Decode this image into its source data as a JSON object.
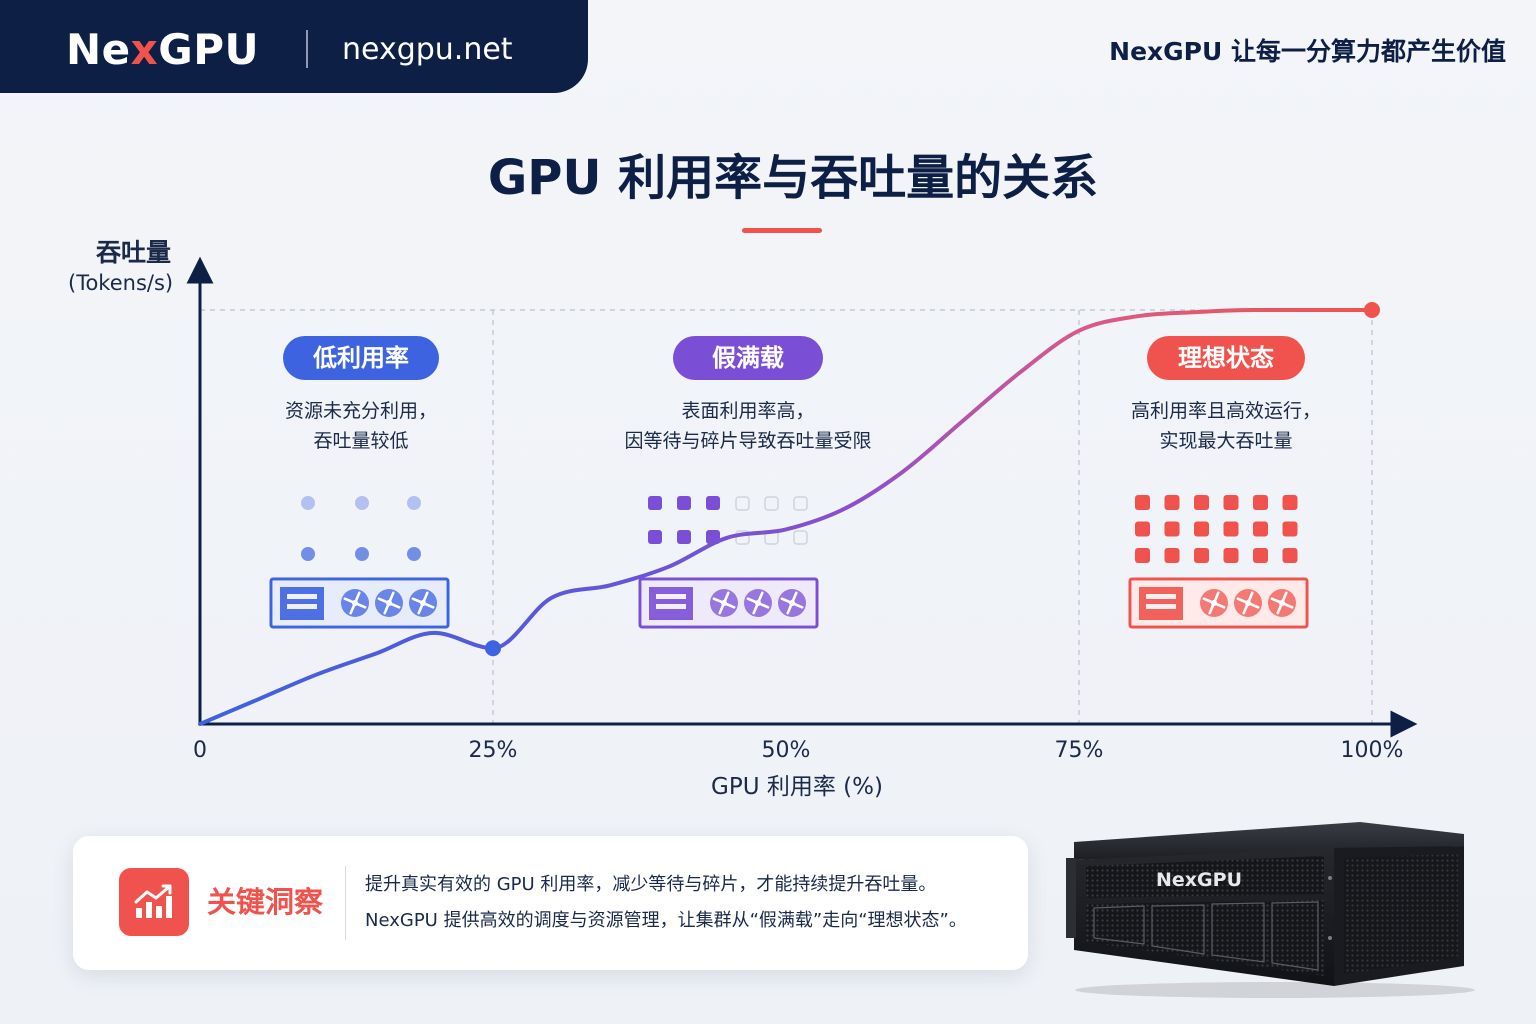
{
  "header": {
    "brand_prefix": "Ne",
    "brand_x": "x",
    "brand_suffix": "GPU",
    "url": "nexgpu.net",
    "slogan": "NexGPU 让每一分算力都产生价值"
  },
  "colors": {
    "navy": "#0d1f45",
    "accent_red": "#f0534d",
    "low_blue": "#3d63e0",
    "fake_purple": "#7a4fd6",
    "ideal_red": "#f0534d"
  },
  "chart_data": {
    "type": "line",
    "title": "GPU 利用率与吞吐量的关系",
    "xlabel": "GPU 利用率 (%)",
    "ylabel": "吞吐量",
    "yunit": "(Tokens/s)",
    "x_ticks": [
      "0",
      "25%",
      "50%",
      "75%",
      "100%"
    ],
    "xlim": [
      0,
      100
    ],
    "ylim": [
      0,
      100
    ],
    "grid": false,
    "x": [
      0,
      5,
      10,
      15,
      20,
      25,
      30,
      35,
      40,
      45,
      50,
      55,
      60,
      65,
      70,
      75,
      80,
      85,
      90,
      95,
      100
    ],
    "y": [
      0,
      6,
      12,
      17,
      22,
      18.3,
      30.5,
      33.5,
      38,
      45,
      47,
      52,
      61,
      73,
      85,
      95,
      98.5,
      99.5,
      100,
      100,
      100
    ],
    "marked_points": [
      {
        "x": 25,
        "y": 18.3
      },
      {
        "x": 100,
        "y": 100
      }
    ],
    "zones": [
      {
        "badge": "低利用率",
        "desc": [
          "资源未充分利用，",
          "吞吐量较低"
        ],
        "color": "#3d63e0",
        "x_range": [
          0,
          25
        ]
      },
      {
        "badge": "假满载",
        "desc": [
          "表面利用率高，",
          "因等待与碎片导致吞吐量受限"
        ],
        "color": "#7a4fd6",
        "x_range": [
          25,
          75
        ]
      },
      {
        "badge": "理想状态",
        "desc": [
          "高利用率且高效运行，",
          "实现最大吞吐量"
        ],
        "color": "#f0534d",
        "x_range": [
          75,
          100
        ]
      }
    ]
  },
  "insight": {
    "icon": "growth-chart-icon",
    "title": "关键洞察",
    "line1": "提升真实有效的 GPU 利用率，减少等待与碎片，才能持续提升吞吐量。",
    "line2": "NexGPU 提供高效的调度与资源管理，让集群从“假满载”走向“理想状态”。"
  },
  "product": {
    "label": "NexGPU"
  }
}
